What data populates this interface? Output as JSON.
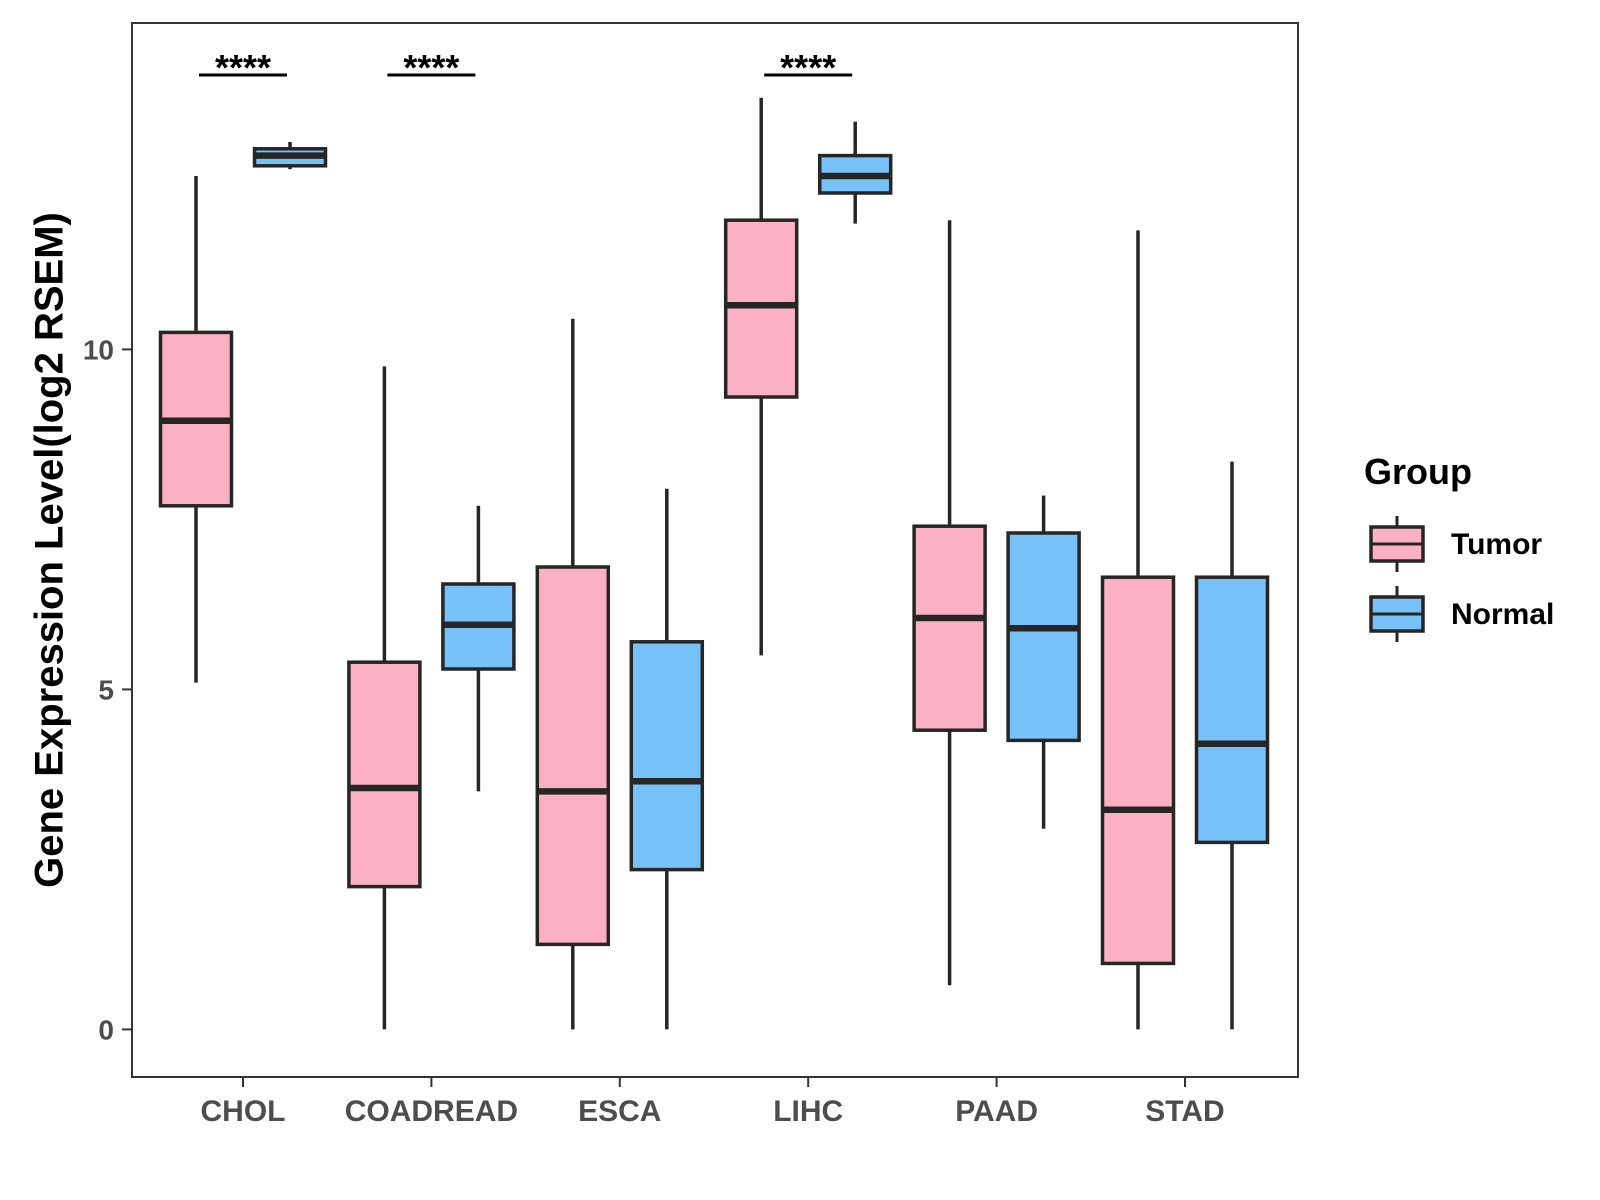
{
  "chart_data": {
    "type": "boxplot",
    "title": "",
    "xlabel": "",
    "ylabel": "Gene Expression Level(log2 RSEM)",
    "ylim": [
      -0.7,
      14.8
    ],
    "yticks": [
      0,
      5,
      10
    ],
    "grid": false,
    "categories": [
      "CHOL",
      "COADREAD",
      "ESCA",
      "LIHC",
      "PAAD",
      "STAD"
    ],
    "legend": {
      "title": "Group",
      "placement": "right",
      "entries": [
        {
          "name": "Tumor",
          "color": "#FBB1C3"
        },
        {
          "name": "Normal",
          "color": "#76C1F7"
        }
      ]
    },
    "series": [
      {
        "name": "Tumor",
        "color": "#FBB1C3",
        "boxes": [
          {
            "category": "CHOL",
            "whisker_low": 5.1,
            "q1": 7.7,
            "median": 8.95,
            "q3": 10.25,
            "whisker_high": 12.55
          },
          {
            "category": "COADREAD",
            "whisker_low": 0.0,
            "q1": 2.1,
            "median": 3.55,
            "q3": 5.4,
            "whisker_high": 9.75
          },
          {
            "category": "ESCA",
            "whisker_low": 0.0,
            "q1": 1.25,
            "median": 3.5,
            "q3": 6.8,
            "whisker_high": 10.45
          },
          {
            "category": "LIHC",
            "whisker_low": 5.5,
            "q1": 9.3,
            "median": 10.65,
            "q3": 11.9,
            "whisker_high": 13.7
          },
          {
            "category": "PAAD",
            "whisker_low": 0.65,
            "q1": 4.4,
            "median": 6.05,
            "q3": 7.4,
            "whisker_high": 11.9
          },
          {
            "category": "STAD",
            "whisker_low": 0.0,
            "q1": 0.97,
            "median": 3.23,
            "q3": 6.65,
            "whisker_high": 11.75
          }
        ]
      },
      {
        "name": "Normal",
        "color": "#76C1F7",
        "boxes": [
          {
            "category": "CHOL",
            "whisker_low": 12.65,
            "q1": 12.7,
            "median": 12.85,
            "q3": 12.95,
            "whisker_high": 13.05
          },
          {
            "category": "COADREAD",
            "whisker_low": 3.5,
            "q1": 5.3,
            "median": 5.95,
            "q3": 6.55,
            "whisker_high": 7.7
          },
          {
            "category": "ESCA",
            "whisker_low": 0.0,
            "q1": 2.35,
            "median": 3.65,
            "q3": 5.7,
            "whisker_high": 7.95
          },
          {
            "category": "LIHC",
            "whisker_low": 11.85,
            "q1": 12.3,
            "median": 12.55,
            "q3": 12.85,
            "whisker_high": 13.35
          },
          {
            "category": "PAAD",
            "whisker_low": 2.95,
            "q1": 4.25,
            "median": 5.9,
            "q3": 7.3,
            "whisker_high": 7.85
          },
          {
            "category": "STAD",
            "whisker_low": 0.0,
            "q1": 2.75,
            "median": 4.2,
            "q3": 6.65,
            "whisker_high": 8.35
          }
        ]
      }
    ],
    "annotations": [
      {
        "category": "CHOL",
        "text": "****"
      },
      {
        "category": "COADREAD",
        "text": "****"
      },
      {
        "category": "LIHC",
        "text": "****"
      }
    ]
  }
}
